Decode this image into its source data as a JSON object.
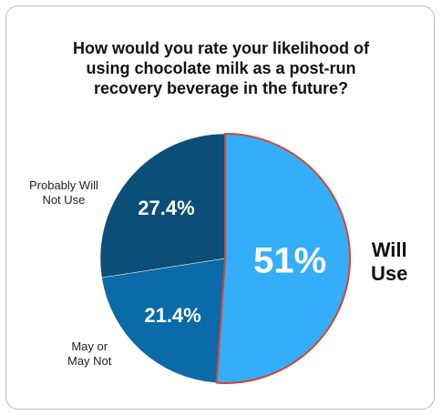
{
  "chart_data": {
    "type": "pie",
    "title": "How would you rate your likelihood of using chocolate milk as a post-run recovery beverage in the future?",
    "slices": [
      {
        "label": "Will Use",
        "value": 51,
        "value_label": "51%",
        "color": "#35aef9",
        "highlight_stroke": "#d7432f"
      },
      {
        "label": "May or May Not",
        "value": 21.4,
        "value_label": "21.4%",
        "color": "#0b6aa8"
      },
      {
        "label": "Probably Will Not Use",
        "value": 27.4,
        "value_label": "27.4%",
        "color": "#0b4f78"
      }
    ]
  },
  "labels": {
    "will_use_line1": "Will",
    "will_use_line2": "Use",
    "may_line1": "May or",
    "may_line2": "May Not",
    "pwnu_line1": "Probably Will",
    "pwnu_line2": "Not Use"
  }
}
